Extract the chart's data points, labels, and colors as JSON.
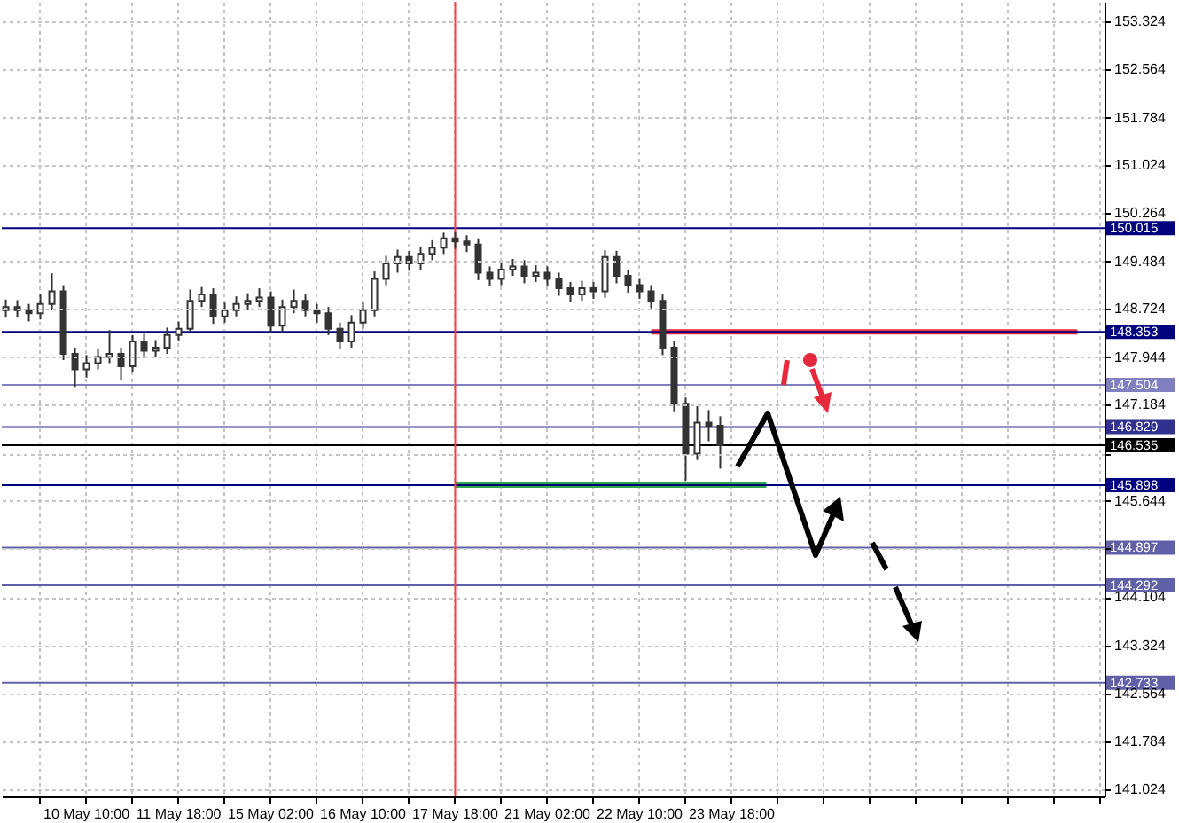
{
  "chart_data": {
    "type": "candlestick",
    "color": "#333333",
    "categories": [
      null,
      null,
      null,
      null,
      null,
      null,
      null,
      "10 May 10:00",
      null,
      null,
      null,
      null,
      null,
      null,
      null,
      "11 May 18:00",
      null,
      null,
      null,
      null,
      null,
      null,
      null,
      "15 May 02:00",
      null,
      null,
      null,
      null,
      null,
      null,
      null,
      "16 May 10:00",
      null,
      null,
      null,
      null,
      null,
      null,
      null,
      "17 May 18:00",
      null,
      null,
      null,
      null,
      null,
      null,
      null,
      "21 May 02:00",
      null,
      null,
      null,
      null,
      null,
      null,
      null,
      "22 May 10:00",
      null,
      null,
      null,
      null,
      null,
      null,
      null,
      "23 May 18:00",
      null,
      null,
      null,
      null,
      null,
      null,
      null,
      null,
      null,
      null,
      null,
      null,
      null,
      null,
      null,
      null,
      null,
      null,
      null,
      null,
      null,
      null,
      null,
      null,
      null,
      null,
      null,
      null,
      null,
      null,
      null,
      null
    ],
    "ohlc": [
      [
        148.7,
        148.87,
        148.58,
        148.75
      ],
      [
        148.75,
        148.86,
        148.58,
        148.7
      ],
      [
        148.7,
        148.8,
        148.52,
        148.65
      ],
      [
        148.65,
        148.95,
        148.55,
        148.8
      ],
      [
        148.8,
        149.29,
        148.7,
        149.0
      ],
      [
        149.0,
        149.1,
        147.9,
        148.0
      ],
      [
        148.0,
        148.1,
        147.47,
        147.75
      ],
      [
        147.75,
        147.98,
        147.62,
        147.85
      ],
      [
        147.85,
        148.08,
        147.75,
        147.95
      ],
      [
        147.95,
        148.38,
        147.85,
        148.0
      ],
      [
        148.0,
        148.1,
        147.58,
        147.8
      ],
      [
        147.8,
        148.3,
        147.7,
        148.2
      ],
      [
        148.2,
        148.32,
        147.93,
        148.05
      ],
      [
        148.05,
        148.22,
        147.95,
        148.1
      ],
      [
        148.1,
        148.42,
        148.0,
        148.3
      ],
      [
        148.3,
        148.52,
        148.2,
        148.4
      ],
      [
        148.4,
        149.03,
        148.35,
        148.85
      ],
      [
        148.85,
        149.07,
        148.75,
        148.95
      ],
      [
        148.95,
        149.05,
        148.48,
        148.6
      ],
      [
        148.6,
        148.82,
        148.5,
        148.7
      ],
      [
        148.7,
        148.92,
        148.6,
        148.8
      ],
      [
        148.8,
        148.97,
        148.7,
        148.85
      ],
      [
        148.85,
        149.05,
        148.75,
        148.9
      ],
      [
        148.9,
        149.0,
        148.33,
        148.45
      ],
      [
        148.45,
        148.87,
        148.35,
        148.75
      ],
      [
        148.75,
        149.03,
        148.65,
        148.85
      ],
      [
        148.85,
        148.95,
        148.6,
        148.7
      ],
      [
        148.7,
        148.8,
        148.5,
        148.65
      ],
      [
        148.65,
        148.75,
        148.3,
        148.4
      ],
      [
        148.4,
        148.5,
        148.08,
        148.2
      ],
      [
        148.2,
        148.62,
        148.1,
        148.5
      ],
      [
        148.5,
        148.82,
        148.4,
        148.7
      ],
      [
        148.7,
        149.32,
        148.6,
        149.2
      ],
      [
        149.2,
        149.57,
        149.1,
        149.45
      ],
      [
        149.45,
        149.67,
        149.3,
        149.55
      ],
      [
        149.55,
        149.65,
        149.33,
        149.45
      ],
      [
        149.45,
        149.72,
        149.35,
        149.6
      ],
      [
        149.6,
        149.82,
        149.5,
        149.7
      ],
      [
        149.7,
        149.94,
        149.6,
        149.85
      ],
      [
        149.85,
        149.95,
        149.68,
        149.8
      ],
      [
        149.8,
        149.9,
        149.63,
        149.75
      ],
      [
        149.75,
        149.85,
        149.18,
        149.3
      ],
      [
        149.3,
        149.4,
        149.08,
        149.2
      ],
      [
        149.2,
        149.47,
        149.1,
        149.35
      ],
      [
        149.35,
        149.52,
        149.25,
        149.4
      ],
      [
        149.4,
        149.5,
        149.13,
        149.25
      ],
      [
        149.25,
        149.42,
        149.15,
        149.3
      ],
      [
        149.3,
        149.4,
        149.08,
        149.2
      ],
      [
        149.2,
        149.3,
        148.93,
        149.05
      ],
      [
        149.05,
        149.15,
        148.83,
        148.95
      ],
      [
        148.95,
        149.17,
        148.85,
        149.05
      ],
      [
        149.05,
        149.15,
        148.88,
        149.0
      ],
      [
        149.0,
        149.66,
        148.9,
        149.55
      ],
      [
        149.55,
        149.65,
        149.13,
        149.25
      ],
      [
        149.25,
        149.35,
        148.98,
        149.1
      ],
      [
        149.1,
        149.2,
        148.88,
        149.0
      ],
      [
        149.0,
        149.1,
        148.73,
        148.85
      ],
      [
        148.85,
        148.95,
        147.98,
        148.1
      ],
      [
        148.1,
        148.2,
        147.08,
        147.2
      ],
      [
        147.2,
        147.3,
        145.97,
        146.4
      ],
      [
        146.4,
        147.16,
        146.3,
        146.9
      ],
      [
        146.9,
        147.1,
        146.6,
        146.85
      ],
      [
        146.85,
        147.0,
        146.16,
        146.535
      ],
      null,
      null,
      null,
      null,
      null,
      null,
      null,
      null,
      null,
      null,
      null,
      null,
      null,
      null,
      null,
      null,
      null,
      null,
      null,
      null,
      null,
      null,
      null,
      null,
      null,
      null,
      null,
      null,
      null,
      null,
      null,
      null,
      null
    ],
    "series": [
      {
        "type": "line",
        "color": "#e8283c",
        "values": [
          null,
          null,
          null,
          null,
          null,
          null,
          null,
          null,
          null,
          null,
          null,
          null,
          null,
          null,
          null,
          null,
          null,
          null,
          null,
          null,
          null,
          null,
          null,
          null,
          null,
          null,
          null,
          null,
          null,
          null,
          null,
          null,
          null,
          null,
          null,
          null,
          null,
          null,
          null,
          null,
          null,
          null,
          null,
          null,
          null,
          null,
          null,
          null,
          null,
          null,
          null,
          null,
          null,
          null,
          null,
          null,
          148.353,
          148.353,
          148.353,
          148.353,
          148.353,
          148.353,
          148.353,
          148.353,
          148.353,
          148.353,
          148.353,
          148.353,
          148.353,
          148.353,
          148.353,
          148.353,
          148.353,
          148.353,
          148.353,
          148.353,
          148.353,
          148.353,
          148.353,
          148.353,
          148.353,
          148.353,
          148.353,
          148.353,
          148.353,
          148.353,
          148.353,
          148.353,
          148.353,
          148.353,
          148.353,
          148.353,
          148.353,
          148.353,
          null,
          null
        ]
      },
      {
        "type": "line",
        "color": "#2ca84a",
        "values": [
          null,
          null,
          null,
          null,
          null,
          null,
          null,
          null,
          null,
          null,
          null,
          null,
          null,
          null,
          null,
          null,
          null,
          null,
          null,
          null,
          null,
          null,
          null,
          null,
          null,
          null,
          null,
          null,
          null,
          null,
          null,
          null,
          null,
          null,
          null,
          null,
          null,
          null,
          null,
          145.898,
          145.898,
          145.898,
          145.898,
          145.898,
          145.898,
          145.898,
          145.898,
          145.898,
          145.898,
          145.898,
          145.898,
          145.898,
          145.898,
          145.898,
          145.898,
          145.898,
          145.898,
          145.898,
          145.898,
          145.898,
          145.898,
          145.898,
          145.898,
          145.898,
          145.898,
          145.898,
          145.898,
          null,
          null,
          null,
          null,
          null,
          null,
          null,
          null,
          null,
          null,
          null,
          null,
          null,
          null,
          null,
          null,
          null,
          null,
          null,
          null,
          null,
          null,
          null,
          null,
          null,
          null,
          null,
          null,
          null
        ]
      }
    ],
    "ylim": [
      140.91,
      153.64
    ],
    "yticks": [
      141.024,
      141.784,
      142.564,
      143.324,
      144.104,
      {
        "value": 144.884,
        "label": null
      },
      145.644,
      {
        "value": 146.404,
        "label": null
      },
      147.184,
      147.944,
      148.724,
      149.484,
      150.264,
      151.024,
      151.784,
      152.564,
      153.324
    ],
    "ref_lines": [
      {
        "axis": "y",
        "value": 150.015,
        "label": "150.015",
        "color": "#00007f"
      },
      {
        "axis": "y",
        "value": 148.353,
        "label": "148.353",
        "color": "#00007f"
      },
      {
        "axis": "y",
        "value": 147.504,
        "label": "147.504",
        "color": "#8080c0"
      },
      {
        "axis": "y",
        "value": 146.829,
        "label": "146.829",
        "color": "#30308f"
      },
      {
        "axis": "y",
        "value": 146.535,
        "label": "146.535",
        "color": "#000000"
      },
      {
        "axis": "y",
        "value": 145.898,
        "label": "145.898",
        "color": "#00007f"
      },
      {
        "axis": "y",
        "value": 144.897,
        "label": "144.897",
        "color": "#6060a8"
      },
      {
        "axis": "y",
        "value": 144.292,
        "label": "144.292",
        "color": "#6060a8"
      },
      {
        "axis": "y",
        "value": 142.733,
        "label": "142.733",
        "color": "#6060a8"
      },
      {
        "axis": "x",
        "value": "17 May 18:00",
        "color": "#ff4040"
      }
    ],
    "grid": true
  }
}
